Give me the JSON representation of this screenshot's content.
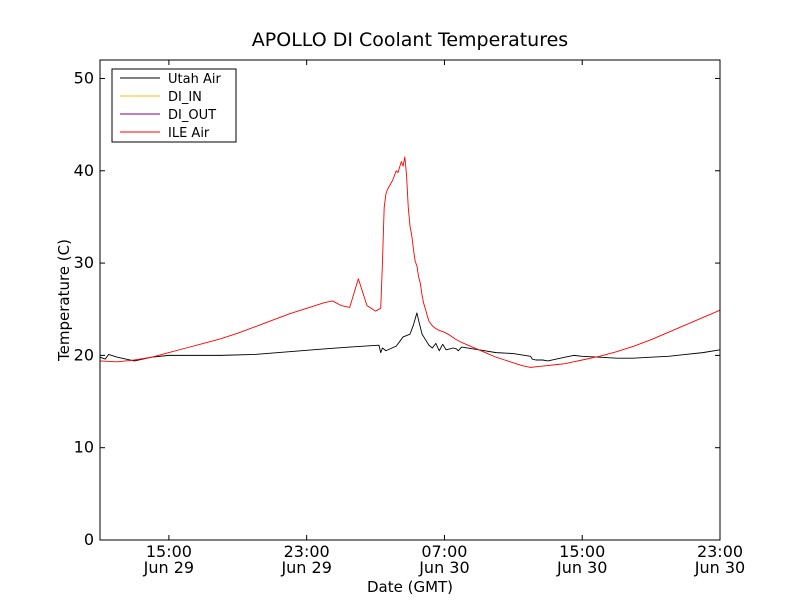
{
  "chart_data": {
    "type": "line",
    "title": "APOLLO DI Coolant Temperatures",
    "xlabel": "Date (GMT)",
    "ylabel": "Temperature (C)",
    "xlim": [
      11,
      47
    ],
    "ylim": [
      0,
      52
    ],
    "x_unit": "hours since Jun 29 00:00 GMT",
    "y_ticks": [
      0,
      10,
      20,
      30,
      40,
      50
    ],
    "y_tick_labels": [
      "0",
      "10",
      "20",
      "30",
      "40",
      "50"
    ],
    "x_ticks": [
      {
        "value": 15,
        "time": "15:00",
        "date": "Jun 29"
      },
      {
        "value": 23,
        "time": "23:00",
        "date": "Jun 29"
      },
      {
        "value": 31,
        "time": "07:00",
        "date": "Jun 30"
      },
      {
        "value": 39,
        "time": "15:00",
        "date": "Jun 30"
      },
      {
        "value": 47,
        "time": "23:00",
        "date": "Jun 30"
      }
    ],
    "legend": {
      "position": "top-left"
    },
    "series": [
      {
        "name": "Utah Air",
        "color": "#000000",
        "x": [
          11,
          11.3,
          11.5,
          12,
          12.5,
          13,
          14,
          15,
          16,
          17,
          18,
          20,
          22,
          24,
          25.5,
          27.2,
          27.3,
          27.4,
          27.6,
          28.2,
          28.6,
          29.0,
          29.2,
          29.4,
          29.5,
          29.7,
          29.9,
          30.1,
          30.3,
          30.5,
          30.7,
          30.9,
          31.1,
          31.3,
          31.5,
          31.7,
          31.8,
          32,
          33,
          34,
          35,
          36,
          36.1,
          36.3,
          36.7,
          37,
          37.5,
          38,
          38.5,
          39,
          40,
          41,
          42,
          43,
          44,
          45,
          46,
          47
        ],
        "y": [
          19.8,
          19.6,
          20.1,
          19.8,
          19.6,
          19.4,
          19.8,
          20,
          20,
          20,
          20,
          20.1,
          20.4,
          20.7,
          20.9,
          21.1,
          20.3,
          20.8,
          20.5,
          21,
          22,
          22.3,
          23.3,
          24.6,
          23.8,
          22.3,
          21.7,
          21.1,
          20.8,
          21.3,
          20.5,
          21.2,
          20.6,
          20.7,
          20.8,
          20.7,
          20.5,
          20.9,
          20.6,
          20.3,
          20.2,
          19.9,
          19.6,
          19.5,
          19.5,
          19.4,
          19.6,
          19.8,
          20,
          19.9,
          19.8,
          19.7,
          19.7,
          19.8,
          19.9,
          20.1,
          20.3,
          20.6
        ]
      },
      {
        "name": "DI_IN",
        "color": "#ffc000",
        "x": [],
        "y": []
      },
      {
        "name": "DI_OUT",
        "color": "#800080",
        "x": [],
        "y": []
      },
      {
        "name": "ILE Air",
        "color": "#ff0000",
        "x": [
          11,
          12,
          13,
          14,
          15,
          16,
          17,
          18,
          19,
          20,
          21,
          22,
          23,
          24,
          24.5,
          25,
          25.5,
          26,
          26.5,
          27,
          27.3,
          27.4,
          27.5,
          27.6,
          27.7,
          28,
          28.2,
          28.3,
          28.5,
          28.6,
          28.7,
          28.8,
          28.9,
          29.0,
          29.1,
          29.2,
          29.3,
          29.4,
          29.5,
          29.6,
          29.7,
          29.8,
          29.9,
          30.0,
          30.1,
          30.3,
          30.5,
          30.7,
          31,
          31.3,
          31.6,
          32,
          32.5,
          33,
          33.5,
          34,
          34.5,
          35,
          35.5,
          36,
          36.5,
          37,
          37.5,
          38,
          38.5,
          39,
          40,
          41,
          42,
          43,
          44,
          45,
          46,
          47
        ],
        "y": [
          19.4,
          19.3,
          19.5,
          19.8,
          20.3,
          20.8,
          21.3,
          21.8,
          22.4,
          23.1,
          23.8,
          24.5,
          25.1,
          25.7,
          25.9,
          25.4,
          25.2,
          28.3,
          25.4,
          24.8,
          25.1,
          30,
          36,
          37.5,
          38,
          39,
          40,
          39.8,
          41,
          40.5,
          41.5,
          39.5,
          36,
          34,
          33,
          31.5,
          30.2,
          29.7,
          28.5,
          27.8,
          26.5,
          25.6,
          25,
          24.3,
          23.7,
          23.2,
          22.9,
          22.7,
          22.5,
          22.2,
          21.8,
          21.4,
          21,
          20.6,
          20.2,
          19.8,
          19.5,
          19.2,
          18.9,
          18.7,
          18.8,
          18.9,
          19,
          19.1,
          19.3,
          19.5,
          19.9,
          20.4,
          21,
          21.7,
          22.5,
          23.3,
          24.1,
          24.9
        ]
      }
    ]
  }
}
